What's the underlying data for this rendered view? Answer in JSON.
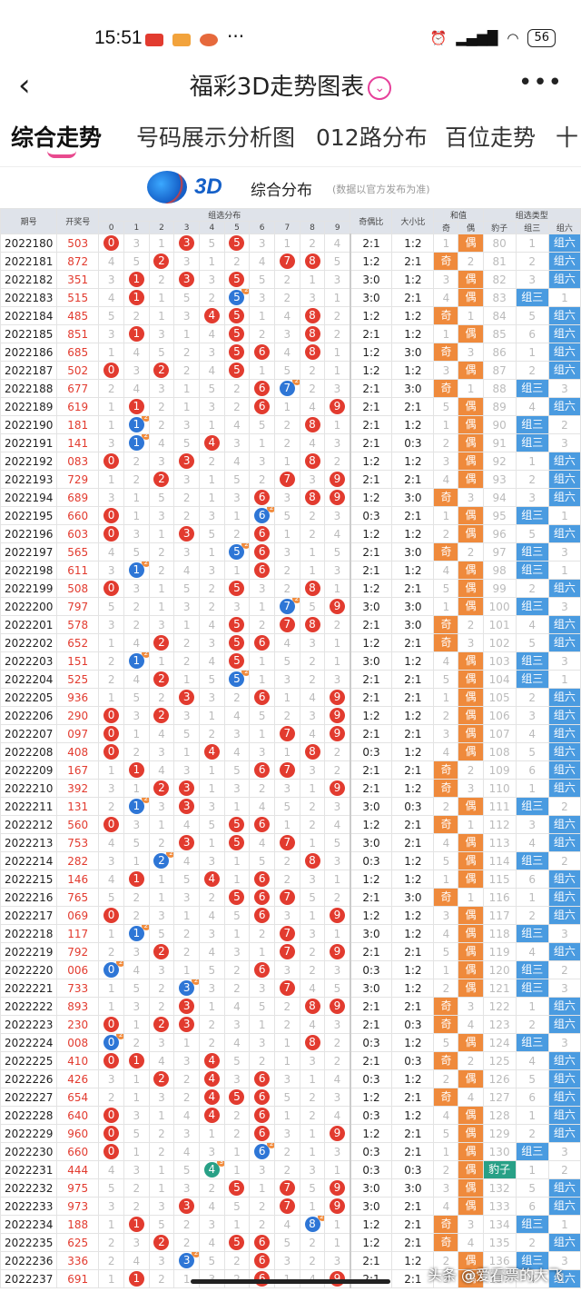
{
  "status": {
    "time": "15:51",
    "battery": "56"
  },
  "nav": {
    "title": "福彩3D走势图表",
    "back_icon": "chevron-left-icon",
    "more_icon": "more-icon"
  },
  "tabs": [
    "综合走势",
    "号码展示分析图",
    "012路分布",
    "百位走势",
    "十"
  ],
  "header": {
    "logo_text": "3D",
    "title": "综合分布",
    "note": "(数据以官方发布为准)"
  },
  "columns": {
    "period": "期号",
    "draw": "开奖号",
    "group": "组选分布",
    "digits": [
      "0",
      "1",
      "2",
      "3",
      "4",
      "5",
      "6",
      "7",
      "8",
      "9"
    ],
    "odd_even": "奇偶比",
    "big_small": "大小比",
    "sum_group": "和值",
    "sum_odd": "奇",
    "sum_even": "偶",
    "type_group": "组选类型",
    "type_leopard": "豹子",
    "type_g3": "组三",
    "type_g6": "组六"
  },
  "rows": [
    {
      "p": "2022180",
      "d": "503",
      "oe": "2:1",
      "bs": "1:2",
      "odd": false,
      "ty": "g6"
    },
    {
      "p": "2022181",
      "d": "872",
      "oe": "1:2",
      "bs": "2:1",
      "odd": true,
      "ty": "g6"
    },
    {
      "p": "2022182",
      "d": "351",
      "oe": "3:0",
      "bs": "1:2",
      "odd": false,
      "ty": "g6"
    },
    {
      "p": "2022183",
      "d": "515",
      "oe": "3:0",
      "bs": "2:1",
      "odd": false,
      "ty": "g3"
    },
    {
      "p": "2022184",
      "d": "485",
      "oe": "1:2",
      "bs": "1:2",
      "odd": true,
      "ty": "g6"
    },
    {
      "p": "2022185",
      "d": "851",
      "oe": "2:1",
      "bs": "1:2",
      "odd": false,
      "ty": "g6"
    },
    {
      "p": "2022186",
      "d": "685",
      "oe": "1:2",
      "bs": "3:0",
      "odd": true,
      "ty": "g6"
    },
    {
      "p": "2022187",
      "d": "502",
      "oe": "1:2",
      "bs": "1:2",
      "odd": false,
      "ty": "g6"
    },
    {
      "p": "2022188",
      "d": "677",
      "oe": "2:1",
      "bs": "3:0",
      "odd": true,
      "ty": "g3"
    },
    {
      "p": "2022189",
      "d": "619",
      "oe": "2:1",
      "bs": "2:1",
      "odd": false,
      "ty": "g6"
    },
    {
      "p": "2022190",
      "d": "181",
      "oe": "2:1",
      "bs": "1:2",
      "odd": false,
      "ty": "g3"
    },
    {
      "p": "2022191",
      "d": "141",
      "oe": "2:1",
      "bs": "0:3",
      "odd": false,
      "ty": "g3"
    },
    {
      "p": "2022192",
      "d": "083",
      "oe": "1:2",
      "bs": "1:2",
      "odd": false,
      "ty": "g6"
    },
    {
      "p": "2022193",
      "d": "729",
      "oe": "2:1",
      "bs": "2:1",
      "odd": false,
      "ty": "g6"
    },
    {
      "p": "2022194",
      "d": "689",
      "oe": "1:2",
      "bs": "3:0",
      "odd": true,
      "ty": "g6"
    },
    {
      "p": "2022195",
      "d": "660",
      "oe": "0:3",
      "bs": "2:1",
      "odd": false,
      "ty": "g3"
    },
    {
      "p": "2022196",
      "d": "603",
      "oe": "1:2",
      "bs": "1:2",
      "odd": false,
      "ty": "g6"
    },
    {
      "p": "2022197",
      "d": "565",
      "oe": "2:1",
      "bs": "3:0",
      "odd": true,
      "ty": "g3"
    },
    {
      "p": "2022198",
      "d": "611",
      "oe": "2:1",
      "bs": "1:2",
      "odd": false,
      "ty": "g3"
    },
    {
      "p": "2022199",
      "d": "508",
      "oe": "1:2",
      "bs": "2:1",
      "odd": false,
      "ty": "g6"
    },
    {
      "p": "2022200",
      "d": "797",
      "oe": "3:0",
      "bs": "3:0",
      "odd": false,
      "ty": "g3"
    },
    {
      "p": "2022201",
      "d": "578",
      "oe": "2:1",
      "bs": "3:0",
      "odd": true,
      "ty": "g6"
    },
    {
      "p": "2022202",
      "d": "652",
      "oe": "1:2",
      "bs": "2:1",
      "odd": true,
      "ty": "g6"
    },
    {
      "p": "2022203",
      "d": "151",
      "oe": "3:0",
      "bs": "1:2",
      "odd": false,
      "ty": "g3"
    },
    {
      "p": "2022204",
      "d": "525",
      "oe": "2:1",
      "bs": "2:1",
      "odd": false,
      "ty": "g3"
    },
    {
      "p": "2022205",
      "d": "936",
      "oe": "2:1",
      "bs": "2:1",
      "odd": false,
      "ty": "g6"
    },
    {
      "p": "2022206",
      "d": "290",
      "oe": "1:2",
      "bs": "1:2",
      "odd": false,
      "ty": "g6"
    },
    {
      "p": "2022207",
      "d": "097",
      "oe": "2:1",
      "bs": "2:1",
      "odd": false,
      "ty": "g6"
    },
    {
      "p": "2022208",
      "d": "408",
      "oe": "0:3",
      "bs": "1:2",
      "odd": false,
      "ty": "g6"
    },
    {
      "p": "2022209",
      "d": "167",
      "oe": "2:1",
      "bs": "2:1",
      "odd": true,
      "ty": "g6"
    },
    {
      "p": "2022210",
      "d": "392",
      "oe": "2:1",
      "bs": "1:2",
      "odd": true,
      "ty": "g6"
    },
    {
      "p": "2022211",
      "d": "131",
      "oe": "3:0",
      "bs": "0:3",
      "odd": false,
      "ty": "g3"
    },
    {
      "p": "2022212",
      "d": "560",
      "oe": "1:2",
      "bs": "2:1",
      "odd": true,
      "ty": "g6"
    },
    {
      "p": "2022213",
      "d": "753",
      "oe": "3:0",
      "bs": "2:1",
      "odd": false,
      "ty": "g6"
    },
    {
      "p": "2022214",
      "d": "282",
      "oe": "0:3",
      "bs": "1:2",
      "odd": false,
      "ty": "g3"
    },
    {
      "p": "2022215",
      "d": "146",
      "oe": "1:2",
      "bs": "1:2",
      "odd": false,
      "ty": "g6"
    },
    {
      "p": "2022216",
      "d": "765",
      "oe": "2:1",
      "bs": "3:0",
      "odd": true,
      "ty": "g6"
    },
    {
      "p": "2022217",
      "d": "069",
      "oe": "1:2",
      "bs": "1:2",
      "odd": false,
      "ty": "g6"
    },
    {
      "p": "2022218",
      "d": "117",
      "oe": "3:0",
      "bs": "1:2",
      "odd": false,
      "ty": "g3"
    },
    {
      "p": "2022219",
      "d": "792",
      "oe": "2:1",
      "bs": "2:1",
      "odd": false,
      "ty": "g6"
    },
    {
      "p": "2022220",
      "d": "006",
      "oe": "0:3",
      "bs": "1:2",
      "odd": false,
      "ty": "g3"
    },
    {
      "p": "2022221",
      "d": "733",
      "oe": "3:0",
      "bs": "1:2",
      "odd": false,
      "ty": "g3"
    },
    {
      "p": "2022222",
      "d": "893",
      "oe": "2:1",
      "bs": "2:1",
      "odd": true,
      "ty": "g6"
    },
    {
      "p": "2022223",
      "d": "230",
      "oe": "2:1",
      "bs": "0:3",
      "odd": true,
      "ty": "g6"
    },
    {
      "p": "2022224",
      "d": "008",
      "oe": "0:3",
      "bs": "1:2",
      "odd": false,
      "ty": "g3"
    },
    {
      "p": "2022225",
      "d": "410",
      "oe": "2:1",
      "bs": "0:3",
      "odd": true,
      "ty": "g6"
    },
    {
      "p": "2022226",
      "d": "426",
      "oe": "0:3",
      "bs": "1:2",
      "odd": false,
      "ty": "g6"
    },
    {
      "p": "2022227",
      "d": "654",
      "oe": "1:2",
      "bs": "2:1",
      "odd": true,
      "ty": "g6"
    },
    {
      "p": "2022228",
      "d": "640",
      "oe": "0:3",
      "bs": "1:2",
      "odd": false,
      "ty": "g6"
    },
    {
      "p": "2022229",
      "d": "960",
      "oe": "1:2",
      "bs": "2:1",
      "odd": false,
      "ty": "g6"
    },
    {
      "p": "2022230",
      "d": "660",
      "oe": "0:3",
      "bs": "2:1",
      "odd": false,
      "ty": "g3"
    },
    {
      "p": "2022231",
      "d": "444",
      "oe": "0:3",
      "bs": "0:3",
      "odd": false,
      "ty": "leo"
    },
    {
      "p": "2022232",
      "d": "975",
      "oe": "3:0",
      "bs": "3:0",
      "odd": false,
      "ty": "g6"
    },
    {
      "p": "2022233",
      "d": "973",
      "oe": "3:0",
      "bs": "2:1",
      "odd": false,
      "ty": "g6"
    },
    {
      "p": "2022234",
      "d": "188",
      "oe": "1:2",
      "bs": "2:1",
      "odd": true,
      "ty": "g3"
    },
    {
      "p": "2022235",
      "d": "625",
      "oe": "1:2",
      "bs": "2:1",
      "odd": true,
      "ty": "g6"
    },
    {
      "p": "2022236",
      "d": "336",
      "oe": "2:1",
      "bs": "1:2",
      "odd": false,
      "ty": "g3"
    },
    {
      "p": "2022237",
      "d": "691",
      "oe": "2:1",
      "bs": "2:1",
      "odd": false,
      "ty": "g6"
    }
  ],
  "watermark": "头条 @爱看票的大飞"
}
